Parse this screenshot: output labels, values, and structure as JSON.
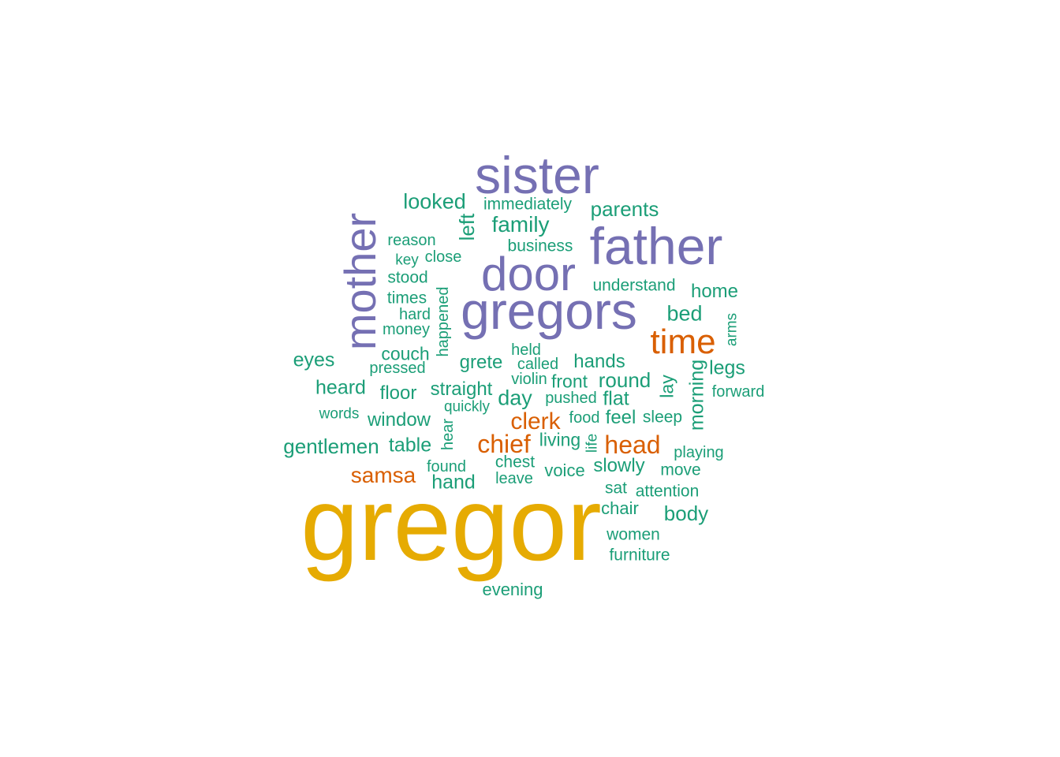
{
  "palette": {
    "tier1": "#E6AB02",
    "tier2": "#7570B3",
    "tier3": "#D95F02",
    "tier4": "#1B9E77"
  },
  "words": {
    "gregor": {
      "text": "gregor",
      "tier": "tier1"
    },
    "sister": {
      "text": "sister",
      "tier": "tier2"
    },
    "father": {
      "text": "father",
      "tier": "tier2"
    },
    "door": {
      "text": "door",
      "tier": "tier2"
    },
    "gregors": {
      "text": "gregors",
      "tier": "tier2"
    },
    "mother": {
      "text": "mother",
      "tier": "tier2"
    },
    "time": {
      "text": "time",
      "tier": "tier3"
    },
    "clerk": {
      "text": "clerk",
      "tier": "tier3"
    },
    "chief": {
      "text": "chief",
      "tier": "tier3"
    },
    "head": {
      "text": "head",
      "tier": "tier3"
    },
    "samsa": {
      "text": "samsa",
      "tier": "tier3"
    },
    "looked": {
      "text": "looked",
      "tier": "tier4"
    },
    "immediately": {
      "text": "immediately",
      "tier": "tier4"
    },
    "parents": {
      "text": "parents",
      "tier": "tier4"
    },
    "family": {
      "text": "family",
      "tier": "tier4"
    },
    "left": {
      "text": "left",
      "tier": "tier4"
    },
    "reason": {
      "text": "reason",
      "tier": "tier4"
    },
    "business": {
      "text": "business",
      "tier": "tier4"
    },
    "key": {
      "text": "key",
      "tier": "tier4"
    },
    "close": {
      "text": "close",
      "tier": "tier4"
    },
    "stood": {
      "text": "stood",
      "tier": "tier4"
    },
    "understand": {
      "text": "understand",
      "tier": "tier4"
    },
    "home": {
      "text": "home",
      "tier": "tier4"
    },
    "times": {
      "text": "times",
      "tier": "tier4"
    },
    "happened": {
      "text": "happened",
      "tier": "tier4"
    },
    "hard": {
      "text": "hard",
      "tier": "tier4"
    },
    "bed": {
      "text": "bed",
      "tier": "tier4"
    },
    "money": {
      "text": "money",
      "tier": "tier4"
    },
    "arms": {
      "text": "arms",
      "tier": "tier4"
    },
    "couch": {
      "text": "couch",
      "tier": "tier4"
    },
    "held": {
      "text": "held",
      "tier": "tier4"
    },
    "eyes": {
      "text": "eyes",
      "tier": "tier4"
    },
    "pressed": {
      "text": "pressed",
      "tier": "tier4"
    },
    "grete": {
      "text": "grete",
      "tier": "tier4"
    },
    "called": {
      "text": "called",
      "tier": "tier4"
    },
    "hands": {
      "text": "hands",
      "tier": "tier4"
    },
    "legs": {
      "text": "legs",
      "tier": "tier4"
    },
    "morning": {
      "text": "morning",
      "tier": "tier4"
    },
    "violin": {
      "text": "violin",
      "tier": "tier4"
    },
    "front": {
      "text": "front",
      "tier": "tier4"
    },
    "round": {
      "text": "round",
      "tier": "tier4"
    },
    "lay": {
      "text": "lay",
      "tier": "tier4"
    },
    "heard": {
      "text": "heard",
      "tier": "tier4"
    },
    "straight": {
      "text": "straight",
      "tier": "tier4"
    },
    "forward": {
      "text": "forward",
      "tier": "tier4"
    },
    "floor": {
      "text": "floor",
      "tier": "tier4"
    },
    "day": {
      "text": "day",
      "tier": "tier4"
    },
    "pushed": {
      "text": "pushed",
      "tier": "tier4"
    },
    "flat": {
      "text": "flat",
      "tier": "tier4"
    },
    "words": {
      "text": "words",
      "tier": "tier4"
    },
    "quickly": {
      "text": "quickly",
      "tier": "tier4"
    },
    "window": {
      "text": "window",
      "tier": "tier4"
    },
    "food": {
      "text": "food",
      "tier": "tier4"
    },
    "feel": {
      "text": "feel",
      "tier": "tier4"
    },
    "sleep": {
      "text": "sleep",
      "tier": "tier4"
    },
    "hear": {
      "text": "hear",
      "tier": "tier4"
    },
    "gentlemen": {
      "text": "gentlemen",
      "tier": "tier4"
    },
    "table": {
      "text": "table",
      "tier": "tier4"
    },
    "living": {
      "text": "living",
      "tier": "tier4"
    },
    "life": {
      "text": "life",
      "tier": "tier4"
    },
    "playing": {
      "text": "playing",
      "tier": "tier4"
    },
    "chest": {
      "text": "chest",
      "tier": "tier4"
    },
    "found": {
      "text": "found",
      "tier": "tier4"
    },
    "slowly": {
      "text": "slowly",
      "tier": "tier4"
    },
    "move": {
      "text": "move",
      "tier": "tier4"
    },
    "voice": {
      "text": "voice",
      "tier": "tier4"
    },
    "hand": {
      "text": "hand",
      "tier": "tier4"
    },
    "leave": {
      "text": "leave",
      "tier": "tier4"
    },
    "sat": {
      "text": "sat",
      "tier": "tier4"
    },
    "attention": {
      "text": "attention",
      "tier": "tier4"
    },
    "chair": {
      "text": "chair",
      "tier": "tier4"
    },
    "body": {
      "text": "body",
      "tier": "tier4"
    },
    "women": {
      "text": "women",
      "tier": "tier4"
    },
    "furniture": {
      "text": "furniture",
      "tier": "tier4"
    },
    "evening": {
      "text": "evening",
      "tier": "tier4"
    }
  }
}
